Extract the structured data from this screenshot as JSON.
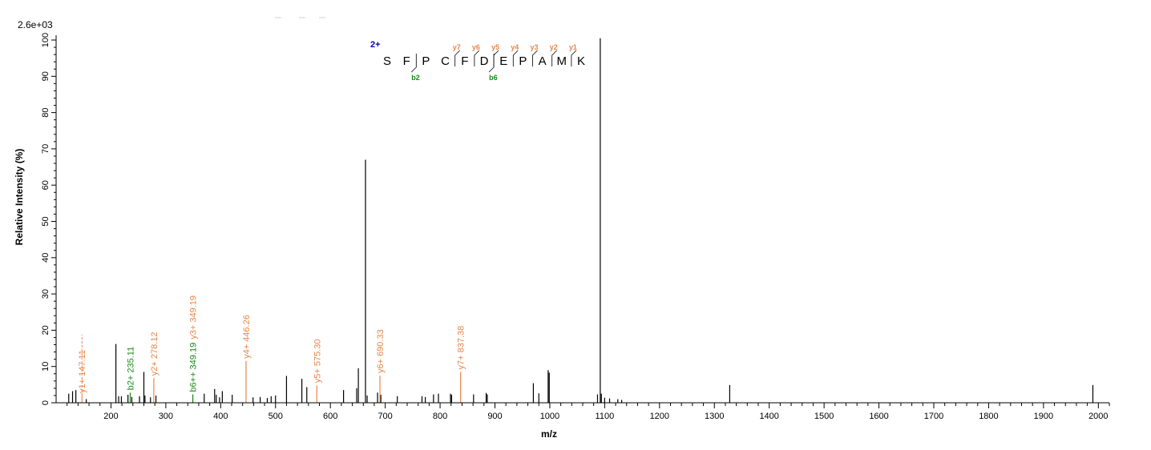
{
  "chart_data": {
    "type": "bar",
    "scale_label": "2.6e+03",
    "xlabel": "m/z",
    "ylabel": "Relative   Intensity (%)",
    "xlim": [
      100,
      2020
    ],
    "ylim": [
      0,
      100
    ],
    "x_major_ticks": [
      200,
      300,
      400,
      500,
      600,
      700,
      800,
      900,
      1000,
      1100,
      1200,
      1300,
      1400,
      1500,
      1600,
      1700,
      1800,
      1900,
      2000
    ],
    "x_minor_step": 20,
    "y_ticks": [
      0,
      10,
      20,
      30,
      40,
      50,
      60,
      70,
      80,
      90,
      100
    ],
    "y_minor_step": 2,
    "colors": {
      "unassigned": "#000000",
      "y_ion": "#e8864a",
      "b_ion": "#1a8a1a",
      "charge": "#0000b0",
      "axis": "#000000"
    },
    "peaks": [
      {
        "mz": 123,
        "intensity": 2.5
      },
      {
        "mz": 130,
        "intensity": 3.2
      },
      {
        "mz": 136,
        "intensity": 3.5
      },
      {
        "mz": 155,
        "intensity": 1.0
      },
      {
        "mz": 209,
        "intensity": 16.2
      },
      {
        "mz": 214,
        "intensity": 1.8
      },
      {
        "mz": 219,
        "intensity": 1.8
      },
      {
        "mz": 231,
        "intensity": 2.2
      },
      {
        "mz": 238,
        "intensity": 1.6
      },
      {
        "mz": 252,
        "intensity": 1.8
      },
      {
        "mz": 260,
        "intensity": 8.5
      },
      {
        "mz": 262,
        "intensity": 2.0
      },
      {
        "mz": 272,
        "intensity": 1.5
      },
      {
        "mz": 282,
        "intensity": 2.0
      },
      {
        "mz": 370,
        "intensity": 2.5
      },
      {
        "mz": 389,
        "intensity": 3.8
      },
      {
        "mz": 392,
        "intensity": 2.2
      },
      {
        "mz": 398,
        "intensity": 1.5
      },
      {
        "mz": 403,
        "intensity": 3.2
      },
      {
        "mz": 421,
        "intensity": 2.2
      },
      {
        "mz": 459,
        "intensity": 1.5
      },
      {
        "mz": 472,
        "intensity": 1.6
      },
      {
        "mz": 485,
        "intensity": 1.3
      },
      {
        "mz": 492,
        "intensity": 1.8
      },
      {
        "mz": 500,
        "intensity": 2.0
      },
      {
        "mz": 520,
        "intensity": 7.4
      },
      {
        "mz": 548,
        "intensity": 6.6
      },
      {
        "mz": 557,
        "intensity": 4.3
      },
      {
        "mz": 624,
        "intensity": 3.5
      },
      {
        "mz": 648,
        "intensity": 4.0
      },
      {
        "mz": 651,
        "intensity": 9.5
      },
      {
        "mz": 664,
        "intensity": 67.0
      },
      {
        "mz": 667,
        "intensity": 2.0
      },
      {
        "mz": 686,
        "intensity": 2.8
      },
      {
        "mz": 692,
        "intensity": 2.2
      },
      {
        "mz": 722,
        "intensity": 1.8
      },
      {
        "mz": 767,
        "intensity": 1.8
      },
      {
        "mz": 773,
        "intensity": 1.6
      },
      {
        "mz": 788,
        "intensity": 2.3
      },
      {
        "mz": 797,
        "intensity": 2.5
      },
      {
        "mz": 819,
        "intensity": 2.5
      },
      {
        "mz": 821,
        "intensity": 2.2
      },
      {
        "mz": 861,
        "intensity": 2.3
      },
      {
        "mz": 884,
        "intensity": 2.7
      },
      {
        "mz": 886,
        "intensity": 2.3
      },
      {
        "mz": 970,
        "intensity": 5.4
      },
      {
        "mz": 980,
        "intensity": 2.6
      },
      {
        "mz": 997,
        "intensity": 9.0
      },
      {
        "mz": 999,
        "intensity": 8.3
      },
      {
        "mz": 1087,
        "intensity": 2.3
      },
      {
        "mz": 1092,
        "intensity": 100.5
      },
      {
        "mz": 1094,
        "intensity": 2.5
      },
      {
        "mz": 1100,
        "intensity": 1.4
      },
      {
        "mz": 1109,
        "intensity": 1.2
      },
      {
        "mz": 1124,
        "intensity": 1.0
      },
      {
        "mz": 1131,
        "intensity": 0.8
      },
      {
        "mz": 1328,
        "intensity": 4.9
      },
      {
        "mz": 1990,
        "intensity": 4.9
      }
    ],
    "annotated_peaks": [
      {
        "mz": 147.11,
        "intensity": 2.0,
        "ion": "y",
        "label": "y1+ 147.11",
        "dashed_to": 18.8
      },
      {
        "mz": 235.11,
        "intensity": 2.8,
        "ion": "b",
        "label": "b2+ 235.11"
      },
      {
        "mz": 278.12,
        "intensity": 6.8,
        "ion": "y",
        "label": "y2+ 278.12"
      },
      {
        "mz": 349.19,
        "intensity": 2.3,
        "ion": "y",
        "label": "y3+ 349.19",
        "label_at": 17.5
      },
      {
        "mz": 349.19,
        "intensity": 2.3,
        "ion": "b",
        "label": "b6++ 349.19"
      },
      {
        "mz": 446.26,
        "intensity": 11.5,
        "ion": "y",
        "label": "y4+ 446.26"
      },
      {
        "mz": 575.3,
        "intensity": 4.8,
        "ion": "y",
        "label": "y5+ 575.30"
      },
      {
        "mz": 690.33,
        "intensity": 7.5,
        "ion": "y",
        "label": "y6+ 690.33"
      },
      {
        "mz": 837.38,
        "intensity": 8.5,
        "ion": "y",
        "label": "y7+ 837.38"
      }
    ],
    "peptide": {
      "charge": "2+",
      "sequence": [
        "S",
        "F",
        "P",
        "C",
        "F",
        "D",
        "E",
        "P",
        "A",
        "M",
        "K"
      ],
      "y_ions": [
        {
          "after_index": 3,
          "label": "y7"
        },
        {
          "after_index": 4,
          "label": "y6"
        },
        {
          "after_index": 5,
          "label": "y5"
        },
        {
          "after_index": 6,
          "label": "y4"
        },
        {
          "after_index": 7,
          "label": "y3"
        },
        {
          "after_index": 8,
          "label": "y2"
        },
        {
          "after_index": 9,
          "label": "y1"
        }
      ],
      "b_ions": [
        {
          "after_index": 1,
          "label": "b2"
        },
        {
          "after_index": 5,
          "label": "b6"
        }
      ]
    }
  }
}
